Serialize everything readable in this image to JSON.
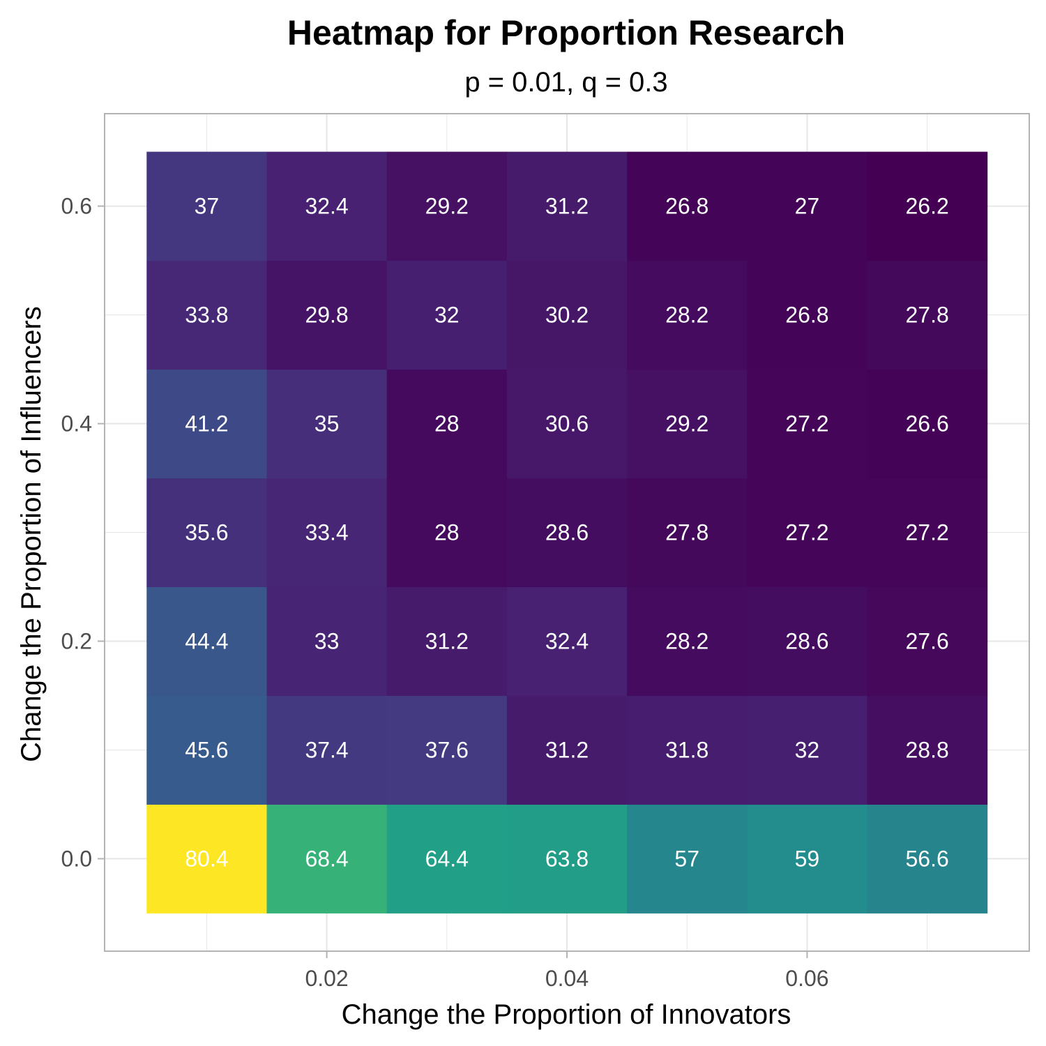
{
  "chart_data": {
    "type": "heatmap",
    "title": "Heatmap for Proportion Research",
    "subtitle": "p = 0.01, q = 0.3",
    "xlabel": "Change the Proportion of Innovators",
    "ylabel": "Change the Proportion of Influencers",
    "x": [
      0.01,
      0.02,
      0.03,
      0.04,
      0.05,
      0.06,
      0.07
    ],
    "y": [
      0.0,
      0.1,
      0.2,
      0.3,
      0.4,
      0.5,
      0.6
    ],
    "x_ticks": [
      {
        "value": 0.02,
        "label": "0.02"
      },
      {
        "value": 0.04,
        "label": "0.04"
      },
      {
        "value": 0.06,
        "label": "0.06"
      }
    ],
    "y_ticks": [
      {
        "value": 0.0,
        "label": "0.0"
      },
      {
        "value": 0.2,
        "label": "0.2"
      },
      {
        "value": 0.4,
        "label": "0.4"
      },
      {
        "value": 0.6,
        "label": "0.6"
      }
    ],
    "values": [
      [
        80.4,
        68.4,
        64.4,
        63.8,
        57,
        59,
        56.6
      ],
      [
        45.6,
        37.4,
        37.6,
        31.2,
        31.8,
        32,
        28.8
      ],
      [
        44.4,
        33,
        31.2,
        32.4,
        28.2,
        28.6,
        27.6
      ],
      [
        35.6,
        33.4,
        28,
        28.6,
        27.8,
        27.2,
        27.2
      ],
      [
        41.2,
        35,
        28,
        30.6,
        29.2,
        27.2,
        26.6
      ],
      [
        33.8,
        29.8,
        32,
        30.2,
        28.2,
        26.8,
        27.8
      ],
      [
        37,
        32.4,
        29.2,
        31.2,
        26.8,
        27,
        26.2
      ]
    ],
    "color_scale": "viridis",
    "legend": "none",
    "grid": true,
    "colors": {
      "grid": "#e6e6e6",
      "panel_border": "#b3b3b3",
      "cell_text": "#ffffff"
    }
  }
}
